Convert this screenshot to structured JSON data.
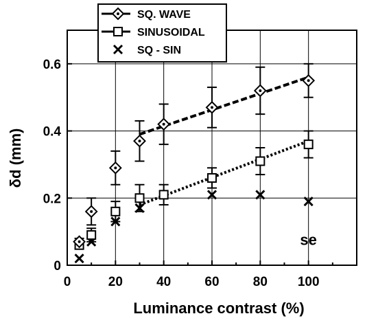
{
  "chart_data": {
    "type": "scatter",
    "xlabel": "Luminance contrast (%)",
    "ylabel": "δd (mm)",
    "xlim": [
      0,
      120
    ],
    "ylim": [
      0,
      0.7
    ],
    "x_ticks": [
      0,
      20,
      40,
      60,
      80,
      100
    ],
    "x_tick_labels": [
      "0",
      "20",
      "40",
      "60",
      "80",
      "100"
    ],
    "y_ticks": [
      0,
      0.2,
      0.4,
      0.6
    ],
    "y_tick_labels": [
      "0",
      "0.2",
      "0.4",
      "0.6"
    ],
    "grid": true,
    "legend_position": "top-left",
    "annotation": "se",
    "series": [
      {
        "name": "SQ. WAVE",
        "marker": "diamond",
        "x": [
          5,
          10,
          20,
          30,
          40,
          60,
          80,
          100
        ],
        "y": [
          0.07,
          0.16,
          0.29,
          0.37,
          0.42,
          0.47,
          0.52,
          0.55
        ],
        "err": [
          0.01,
          0.04,
          0.05,
          0.06,
          0.06,
          0.06,
          0.07,
          0.05
        ],
        "fit": {
          "style": "dashed",
          "x": [
            30,
            100
          ],
          "y": [
            0.39,
            0.56
          ]
        }
      },
      {
        "name": "SINUSOIDAL",
        "marker": "square",
        "x": [
          5,
          10,
          20,
          30,
          40,
          60,
          80,
          100
        ],
        "y": [
          0.06,
          0.09,
          0.16,
          0.2,
          0.21,
          0.26,
          0.31,
          0.36
        ],
        "err": [
          0.01,
          0.02,
          0.03,
          0.04,
          0.03,
          0.03,
          0.04,
          0.04
        ],
        "fit": {
          "style": "dotted",
          "x": [
            30,
            100
          ],
          "y": [
            0.18,
            0.37
          ]
        }
      },
      {
        "name": "SQ  - SIN",
        "marker": "x",
        "x": [
          5,
          10,
          20,
          30,
          40,
          60,
          80,
          100
        ],
        "y": [
          0.02,
          0.07,
          0.13,
          0.17,
          0.21,
          0.21,
          0.21,
          0.19
        ]
      }
    ]
  }
}
